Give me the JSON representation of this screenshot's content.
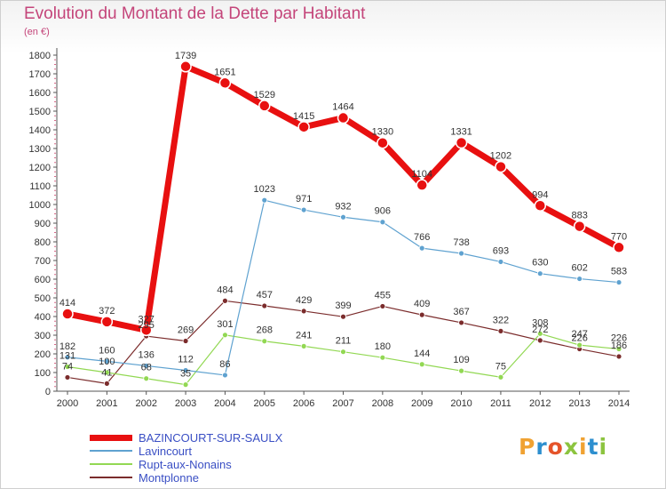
{
  "title": "Evolution du Montant de la Dette par Habitant",
  "subtitle": "(en €)",
  "brand": "Proxiti",
  "chart_data": {
    "type": "line",
    "x": [
      "2000",
      "2001",
      "2002",
      "2003",
      "2004",
      "2005",
      "2006",
      "2007",
      "2008",
      "2009",
      "2010",
      "2011",
      "2012",
      "2013",
      "2014"
    ],
    "ylim": [
      0,
      1800
    ],
    "yticks": [
      0,
      100,
      200,
      300,
      400,
      500,
      600,
      700,
      800,
      900,
      1000,
      1100,
      1200,
      1300,
      1400,
      1500,
      1600,
      1700,
      1800
    ],
    "grid": false,
    "legend_position": "bottom-left",
    "series": [
      {
        "name": "BAZINCOURT-SUR-SAULX",
        "color": "#e81010",
        "width": 7,
        "values": [
          414,
          372,
          327,
          1739,
          1651,
          1529,
          1415,
          1464,
          1330,
          1104,
          1331,
          1202,
          994,
          883,
          770
        ]
      },
      {
        "name": "Lavincourt",
        "color": "#5fa2d0",
        "width": 1.2,
        "values": [
          182,
          160,
          136,
          112,
          86,
          1023,
          971,
          932,
          906,
          766,
          738,
          693,
          630,
          602,
          583
        ]
      },
      {
        "name": "Rupt-aux-Nonains",
        "color": "#92d853",
        "width": 1.2,
        "values": [
          131,
          100,
          68,
          35,
          301,
          268,
          241,
          211,
          180,
          144,
          109,
          75,
          308,
          247,
          226
        ]
      },
      {
        "name": "Montplonne",
        "color": "#7b2c2c",
        "width": 1.2,
        "values": [
          74,
          41,
          295,
          269,
          484,
          457,
          429,
          399,
          455,
          409,
          367,
          322,
          272,
          226,
          186
        ]
      }
    ]
  }
}
